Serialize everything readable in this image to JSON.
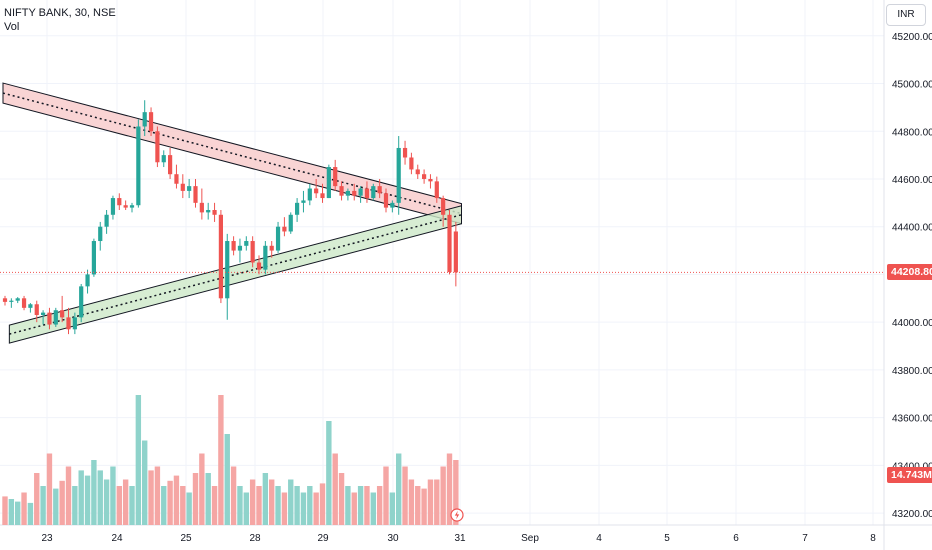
{
  "legend": {
    "symbol_line": "NIFTY BANK, 30, NSE",
    "volume_label": "Vol"
  },
  "currency": "INR",
  "last_price_label": "44208.80",
  "volume_label": "14.743M",
  "colors": {
    "up": "#26a69a",
    "down": "#ef5350",
    "up_vol": "#8fd3cb",
    "down_vol": "#f5a6a4",
    "upper_channel_fill": "#f8c9c9",
    "lower_channel_fill": "#cde8c8",
    "grid": "#f0f3fa"
  },
  "icons": {
    "flash": "lightning-icon"
  },
  "chart_data": {
    "type": "candlestick",
    "title": "NIFTY BANK, 30, NSE",
    "ylim": [
      43150,
      45350
    ],
    "price_ticks": [
      43200,
      43400,
      43600,
      43800,
      44000,
      44200,
      44400,
      44600,
      44800,
      45000,
      45200
    ],
    "price_tick_labels": [
      "43200.00",
      "43400.00",
      "43600.00",
      "43800.00",
      "44000.00",
      "44400.00",
      "44600.00",
      "44800.00",
      "45000.00",
      "45200.00"
    ],
    "x_tick_labels": [
      "23",
      "24",
      "25",
      "28",
      "29",
      "30",
      "31",
      "Sep",
      "4",
      "5",
      "6",
      "7",
      "8"
    ],
    "last_price": 44208.8,
    "candles": [
      [
        44100,
        44110,
        44070,
        44085,
        0.22
      ],
      [
        44085,
        44100,
        44060,
        44090,
        0.2
      ],
      [
        44090,
        44105,
        44080,
        44100,
        0.18
      ],
      [
        44100,
        44110,
        44050,
        44060,
        0.25
      ],
      [
        44060,
        44080,
        44040,
        44075,
        0.17
      ],
      [
        44075,
        44090,
        44000,
        44030,
        0.4
      ],
      [
        44030,
        44050,
        43990,
        44040,
        0.3
      ],
      [
        44040,
        44060,
        43970,
        43990,
        0.55
      ],
      [
        43990,
        44060,
        43980,
        44050,
        0.28
      ],
      [
        44050,
        44110,
        44000,
        44020,
        0.34
      ],
      [
        44020,
        44060,
        43950,
        43970,
        0.45
      ],
      [
        43970,
        44040,
        43950,
        44020,
        0.3
      ],
      [
        44020,
        44160,
        44000,
        44150,
        0.42
      ],
      [
        44150,
        44220,
        44120,
        44200,
        0.38
      ],
      [
        44200,
        44350,
        44190,
        44340,
        0.5
      ],
      [
        44340,
        44420,
        44300,
        44400,
        0.42
      ],
      [
        44400,
        44470,
        44370,
        44450,
        0.35
      ],
      [
        44450,
        44530,
        44430,
        44520,
        0.45
      ],
      [
        44520,
        44540,
        44470,
        44490,
        0.3
      ],
      [
        44490,
        44510,
        44470,
        44480,
        0.35
      ],
      [
        44480,
        44500,
        44460,
        44490,
        0.3
      ],
      [
        44490,
        44850,
        44480,
        44820,
        1.0
      ],
      [
        44820,
        44930,
        44780,
        44880,
        0.65
      ],
      [
        44880,
        44900,
        44780,
        44800,
        0.42
      ],
      [
        44800,
        44820,
        44650,
        44670,
        0.45
      ],
      [
        44670,
        44720,
        44650,
        44700,
        0.3
      ],
      [
        44700,
        44730,
        44600,
        44620,
        0.34
      ],
      [
        44620,
        44660,
        44560,
        44580,
        0.38
      ],
      [
        44580,
        44620,
        44520,
        44550,
        0.3
      ],
      [
        44550,
        44600,
        44520,
        44570,
        0.25
      ],
      [
        44570,
        44600,
        44480,
        44500,
        0.4
      ],
      [
        44500,
        44560,
        44430,
        44460,
        0.55
      ],
      [
        44460,
        44500,
        44430,
        44470,
        0.4
      ],
      [
        44470,
        44500,
        44420,
        44450,
        0.3
      ],
      [
        44450,
        44470,
        44080,
        44100,
        1.0
      ],
      [
        44100,
        44370,
        44010,
        44340,
        0.7
      ],
      [
        44340,
        44360,
        44280,
        44300,
        0.45
      ],
      [
        44300,
        44350,
        44250,
        44320,
        0.3
      ],
      [
        44320,
        44360,
        44300,
        44340,
        0.25
      ],
      [
        44340,
        44360,
        44230,
        44250,
        0.35
      ],
      [
        44250,
        44280,
        44200,
        44220,
        0.3
      ],
      [
        44220,
        44340,
        44200,
        44320,
        0.4
      ],
      [
        44320,
        44340,
        44270,
        44300,
        0.35
      ],
      [
        44300,
        44420,
        44290,
        44400,
        0.3
      ],
      [
        44400,
        44440,
        44360,
        44380,
        0.25
      ],
      [
        44380,
        44460,
        44370,
        44450,
        0.35
      ],
      [
        44450,
        44520,
        44420,
        44500,
        0.3
      ],
      [
        44500,
        44550,
        44460,
        44510,
        0.25
      ],
      [
        44510,
        44580,
        44490,
        44560,
        0.3
      ],
      [
        44560,
        44600,
        44520,
        44540,
        0.25
      ],
      [
        44540,
        44580,
        44500,
        44520,
        0.32
      ],
      [
        44520,
        44660,
        44520,
        44650,
        0.8
      ],
      [
        44650,
        44680,
        44550,
        44570,
        0.55
      ],
      [
        44570,
        44590,
        44510,
        44530,
        0.4
      ],
      [
        44530,
        44560,
        44510,
        44550,
        0.3
      ],
      [
        44550,
        44580,
        44510,
        44530,
        0.25
      ],
      [
        44530,
        44570,
        44500,
        44560,
        0.3
      ],
      [
        44560,
        44590,
        44500,
        44520,
        0.3
      ],
      [
        44520,
        44580,
        44510,
        44570,
        0.25
      ],
      [
        44570,
        44600,
        44520,
        44540,
        0.3
      ],
      [
        44540,
        44560,
        44460,
        44480,
        0.45
      ],
      [
        44480,
        44510,
        44460,
        44500,
        0.25
      ],
      [
        44500,
        44780,
        44450,
        44730,
        0.55
      ],
      [
        44730,
        44760,
        44660,
        44690,
        0.45
      ],
      [
        44690,
        44710,
        44620,
        44640,
        0.35
      ],
      [
        44640,
        44660,
        44600,
        44620,
        0.3
      ],
      [
        44620,
        44640,
        44580,
        44600,
        0.28
      ],
      [
        44600,
        44620,
        44560,
        44590,
        0.35
      ],
      [
        44590,
        44610,
        44500,
        44520,
        0.35
      ],
      [
        44520,
        44530,
        44400,
        44450,
        0.45
      ],
      [
        44450,
        44470,
        44200,
        44210,
        0.55
      ],
      [
        44380,
        44420,
        44150,
        44208.8,
        0.5
      ]
    ],
    "upper_channel_midline": [
      [
        0,
        44960
      ],
      [
        70,
        44455
      ]
    ],
    "lower_channel_midline": [
      [
        1,
        43950
      ],
      [
        70,
        44450
      ]
    ]
  }
}
